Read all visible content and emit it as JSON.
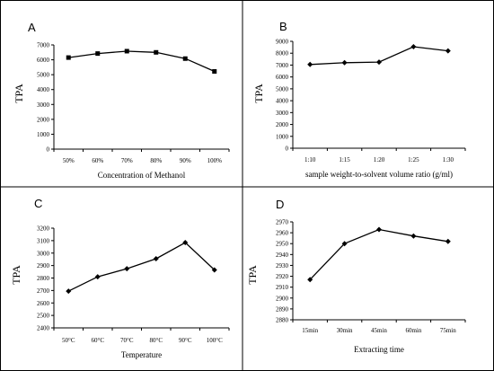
{
  "chart_data": [
    {
      "panel": "A",
      "type": "line",
      "marker": "square",
      "categories": [
        "50%",
        "60%",
        "70%",
        "80%",
        "90%",
        "100%"
      ],
      "values": [
        6150,
        6420,
        6580,
        6500,
        6080,
        5220
      ],
      "xlabel": "Concentration of Methanol",
      "ylabel": "TPA",
      "ylim": [
        0,
        7000
      ],
      "yticks": [
        0,
        1000,
        2000,
        3000,
        4000,
        5000,
        6000,
        7000
      ],
      "grid": false
    },
    {
      "panel": "B",
      "type": "line",
      "marker": "diamond",
      "categories": [
        "1:10",
        "1:15",
        "1:20",
        "1:25",
        "1:30"
      ],
      "values": [
        7050,
        7200,
        7250,
        8550,
        8200
      ],
      "xlabel": "sample weight-to-solvent volume ratio (g/ml)",
      "ylabel": "TPA",
      "ylim": [
        0,
        9000
      ],
      "yticks": [
        0,
        1000,
        2000,
        3000,
        4000,
        5000,
        6000,
        7000,
        8000,
        9000
      ],
      "grid": false
    },
    {
      "panel": "C",
      "type": "line",
      "marker": "diamond",
      "categories": [
        "50°C",
        "60°C",
        "70°C",
        "80°C",
        "90°C",
        "100°C"
      ],
      "values": [
        2695,
        2810,
        2875,
        2955,
        3085,
        2865
      ],
      "xlabel": "Temperature",
      "ylabel": "TPA",
      "ylim": [
        2400,
        3200
      ],
      "yticks": [
        2400,
        2500,
        2600,
        2700,
        2800,
        2900,
        3000,
        3100,
        3200
      ],
      "grid": false
    },
    {
      "panel": "D",
      "type": "line",
      "marker": "diamond",
      "categories": [
        "15min",
        "30min",
        "45min",
        "60min",
        "75min"
      ],
      "values": [
        2917,
        2950,
        2963,
        2957,
        2952
      ],
      "xlabel": "Extracting time",
      "ylabel": "TPA",
      "ylim": [
        2880,
        2970
      ],
      "yticks": [
        2880,
        2890,
        2900,
        2910,
        2920,
        2930,
        2940,
        2950,
        2960,
        2970
      ],
      "grid": false
    }
  ]
}
